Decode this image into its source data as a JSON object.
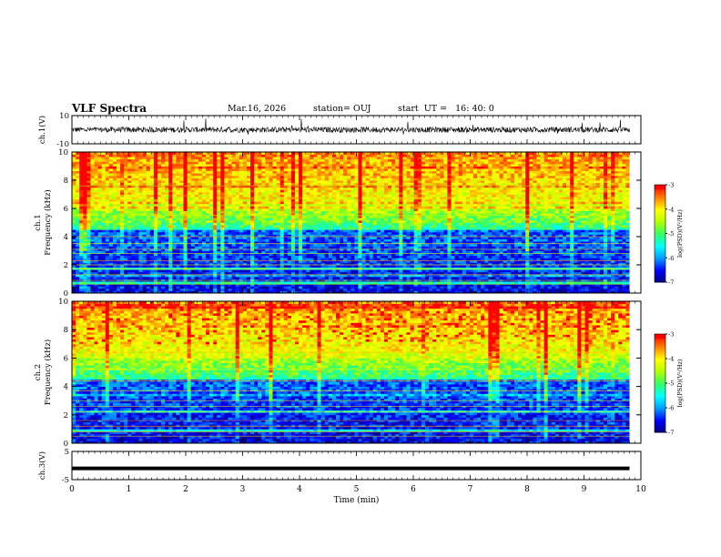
{
  "header": {
    "title": "VLF Spectra",
    "date": "Mar.16, 2026",
    "station": "station= OUJ",
    "start": "start  UT =   16: 40: 0"
  },
  "colors": {
    "colormap": [
      "#00007a",
      "#0000ff",
      "#0099ff",
      "#00ffff",
      "#33ff66",
      "#b3ff00",
      "#ffff00",
      "#ff8000",
      "#ff0000",
      "#ffffff"
    ],
    "trace": "#000000"
  },
  "chart_data": [
    {
      "type": "line",
      "panel": "ch1-waveform",
      "ylabel": "ch.1(V)",
      "ylim": [
        -10,
        10
      ],
      "yticks": [
        "10",
        "-10"
      ],
      "xlim": [
        0,
        10
      ],
      "note_values": "waveform noise band roughly -2 to 2 V with spikes"
    },
    {
      "type": "heatmap",
      "panel": "ch1-spectrogram",
      "ylabel_line1": "ch.1",
      "ylabel_line2": "Frequency (kHz)",
      "ylim": [
        0,
        10
      ],
      "yticks": [
        "0",
        "2",
        "4",
        "6",
        "8",
        "10"
      ],
      "xlim": [
        0,
        9.8
      ],
      "colorbar_label": "log(PSD)(V²/Hz)",
      "colorbar_range": [
        -7,
        -3
      ],
      "colorbar_ticks": [
        "-3",
        "-4",
        "-5",
        "-6",
        "-7"
      ]
    },
    {
      "type": "heatmap",
      "panel": "ch2-spectrogram",
      "ylabel_line1": "ch.2",
      "ylabel_line2": "Frequency (kHz)",
      "ylim": [
        0,
        10
      ],
      "yticks": [
        "0",
        "2",
        "4",
        "6",
        "8",
        "10"
      ],
      "xlim": [
        0,
        9.8
      ],
      "colorbar_label": "log(PSD)(V²/Hz)",
      "colorbar_range": [
        -7,
        -3
      ],
      "colorbar_ticks": [
        "-3",
        "-4",
        "-5",
        "-6",
        "-7"
      ]
    },
    {
      "type": "line",
      "panel": "ch3-waveform",
      "ylabel": "ch.3(V)",
      "ylim": [
        -5,
        5
      ],
      "yticks": [
        "5",
        "-5"
      ],
      "xlim": [
        0,
        10
      ],
      "values_constant": -1
    }
  ],
  "xaxis": {
    "label": "Time (min)",
    "ticks": [
      "0",
      "1",
      "2",
      "3",
      "4",
      "5",
      "6",
      "7",
      "8",
      "9",
      "10"
    ]
  }
}
